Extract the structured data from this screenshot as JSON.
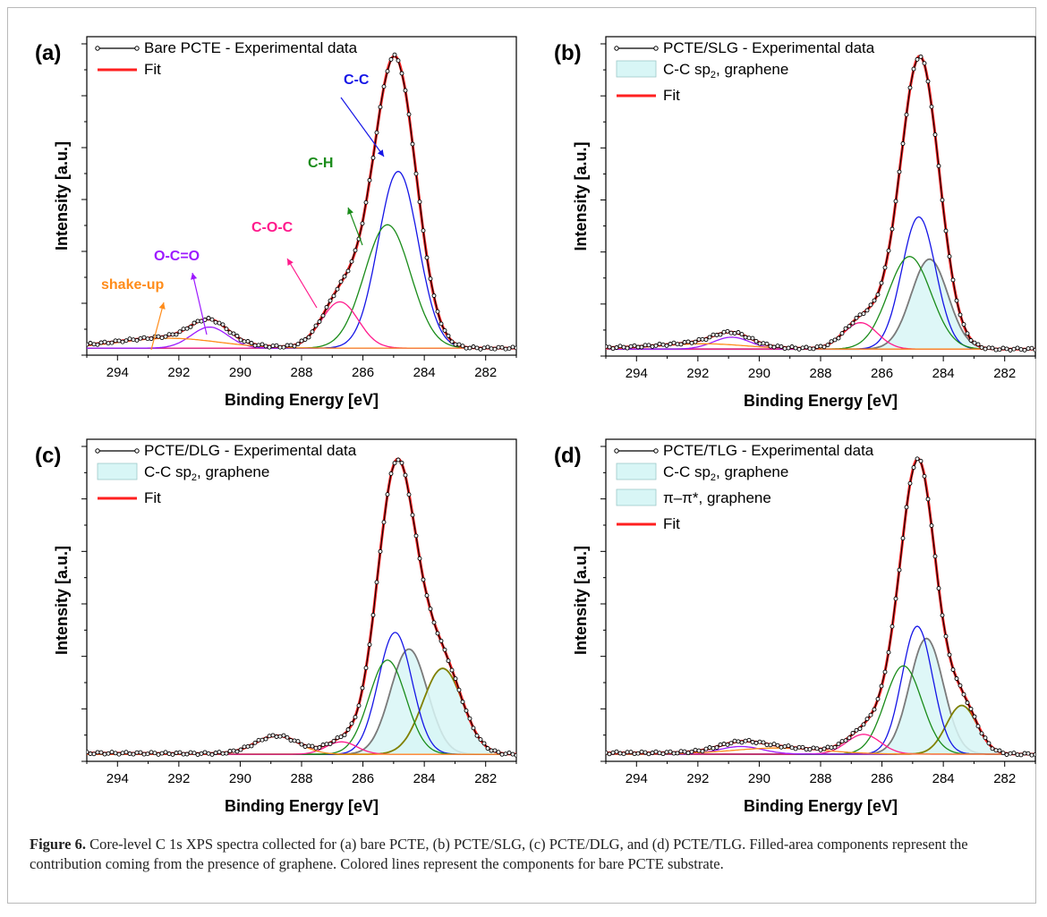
{
  "caption": {
    "label": "Figure 6.",
    "text": " Core-level C 1s XPS spectra collected for (a) bare PCTE, (b) PCTE/SLG, (c) PCTE/DLG, and (d) PCTE/TLG. Filled-area components represent the contribution coming from the presence of graphene. Colored lines represent the components for bare PCTE substrate."
  },
  "colors": {
    "experimental": "#000000",
    "fit": "#ff2020",
    "cc": "#1515e6",
    "ch": "#1a8c1a",
    "coc": "#ff1a8c",
    "oco": "#9d1aff",
    "shakeup": "#ff8c1a",
    "graphene": "#7a7a7a",
    "pipi": "#808000",
    "graphene_fill": "#d8f6f6"
  },
  "chart_data": [
    {
      "type": "line",
      "panel": "(a)",
      "xlabel": "Binding Energy [eV]",
      "ylabel": "Intensity [a.u.]",
      "xlim": [
        295,
        281
      ],
      "x_ticks": [
        294,
        292,
        290,
        288,
        286,
        284,
        282
      ],
      "legend": [
        "Bare PCTE - Experimental data",
        "Fit"
      ],
      "annotations": [
        "C-C",
        "C-H",
        "C-O-C",
        "O-C=O",
        "shake-up"
      ],
      "components": [
        {
          "label": "C-C",
          "center": 284.85,
          "height": 0.63,
          "width": 0.65,
          "color": "cc"
        },
        {
          "label": "C-H",
          "center": 285.2,
          "height": 0.44,
          "width": 0.75,
          "color": "ch"
        },
        {
          "label": "C-O-C",
          "center": 286.75,
          "height": 0.165,
          "width": 0.6,
          "color": "coc"
        },
        {
          "label": "O-C=O",
          "center": 291.0,
          "height": 0.075,
          "width": 0.6,
          "color": "oco"
        },
        {
          "label": "shake-up",
          "center": 292.3,
          "height": 0.035,
          "width": 1.6,
          "color": "shakeup"
        }
      ],
      "experimental_peak": 1.0
    },
    {
      "type": "line",
      "panel": "(b)",
      "xlabel": "Binding Energy [eV]",
      "ylabel": "Intensity [a.u.]",
      "xlim": [
        295,
        281
      ],
      "x_ticks": [
        294,
        292,
        290,
        288,
        286,
        284,
        282
      ],
      "legend": [
        "PCTE/SLG - Experimental data",
        "C-C sp2, graphene",
        "Fit"
      ],
      "components": [
        {
          "label": "C-C sp2, graphene",
          "center": 284.45,
          "height": 0.34,
          "width": 0.6,
          "color": "graphene",
          "filled": true
        },
        {
          "label": "C-C",
          "center": 284.8,
          "height": 0.5,
          "width": 0.55,
          "color": "cc"
        },
        {
          "label": "C-H",
          "center": 285.1,
          "height": 0.35,
          "width": 0.7,
          "color": "ch"
        },
        {
          "label": "C-O-C",
          "center": 286.7,
          "height": 0.1,
          "width": 0.55,
          "color": "coc"
        },
        {
          "label": "O-C=O",
          "center": 290.9,
          "height": 0.045,
          "width": 0.6,
          "color": "oco"
        },
        {
          "label": "shake-up",
          "center": 291.8,
          "height": 0.02,
          "width": 1.4,
          "color": "shakeup"
        }
      ],
      "experimental_peak": 1.0
    },
    {
      "type": "line",
      "panel": "(c)",
      "xlabel": "Binding Energy [eV]",
      "ylabel": "Intensity [a.u.]",
      "xlim": [
        295,
        281
      ],
      "x_ticks": [
        294,
        292,
        290,
        288,
        286,
        284,
        282
      ],
      "legend": [
        "PCTE/DLG - Experimental data",
        "C-C sp2, graphene",
        "Fit"
      ],
      "components": [
        {
          "label": "C-C sp2, graphene",
          "center": 284.5,
          "height": 0.38,
          "width": 0.6,
          "color": "graphene",
          "filled": true
        },
        {
          "label": "C-C sp2, graphene",
          "center": 283.4,
          "height": 0.31,
          "width": 0.65,
          "color": "pipi",
          "filled": true
        },
        {
          "label": "C-C",
          "center": 284.95,
          "height": 0.44,
          "width": 0.55,
          "color": "cc"
        },
        {
          "label": "C-H",
          "center": 285.2,
          "height": 0.34,
          "width": 0.6,
          "color": "ch"
        },
        {
          "label": "C-O-C",
          "center": 286.7,
          "height": 0.045,
          "width": 0.5,
          "color": "coc"
        },
        {
          "label": "O-C=O",
          "center": 288.8,
          "height": 0.065,
          "width": 0.7,
          "color": "shakeup"
        }
      ],
      "experimental_peak": 1.0
    },
    {
      "type": "line",
      "panel": "(d)",
      "xlabel": "Binding Energy [eV]",
      "ylabel": "Intensity [a.u.]",
      "xlim": [
        295,
        281
      ],
      "x_ticks": [
        294,
        292,
        290,
        288,
        286,
        284,
        282
      ],
      "legend": [
        "PCTE/TLG - Experimental data",
        "C-C sp2, graphene",
        "π–π*, graphene",
        "Fit"
      ],
      "components": [
        {
          "label": "C-C sp2, graphene",
          "center": 284.55,
          "height": 0.38,
          "width": 0.55,
          "color": "graphene",
          "filled": true
        },
        {
          "label": "π–π*, graphene",
          "center": 283.4,
          "height": 0.16,
          "width": 0.5,
          "color": "pipi",
          "filled": true
        },
        {
          "label": "C-C",
          "center": 284.85,
          "height": 0.42,
          "width": 0.5,
          "color": "cc"
        },
        {
          "label": "C-H",
          "center": 285.3,
          "height": 0.29,
          "width": 0.6,
          "color": "ch"
        },
        {
          "label": "C-O-C",
          "center": 286.6,
          "height": 0.065,
          "width": 0.55,
          "color": "coc"
        },
        {
          "label": "O-C=O",
          "center": 290.6,
          "height": 0.025,
          "width": 0.7,
          "color": "oco"
        },
        {
          "label": "shake-up",
          "center": 289.4,
          "height": 0.02,
          "width": 1.5,
          "color": "shakeup"
        }
      ],
      "experimental_peak": 1.0
    }
  ]
}
